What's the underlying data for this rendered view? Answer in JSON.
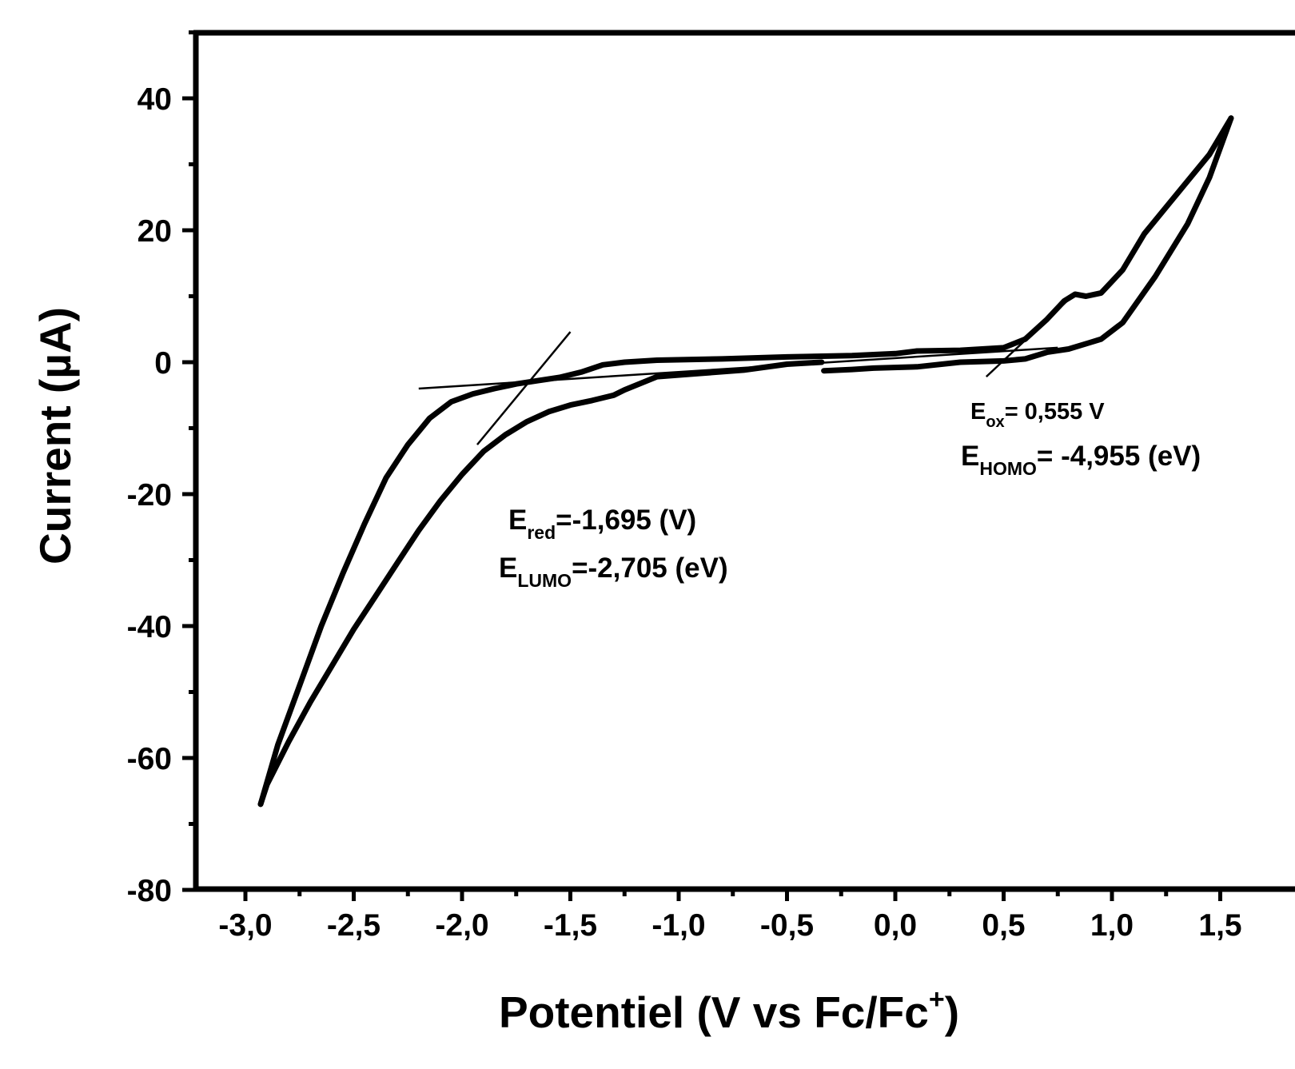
{
  "chart_data": {
    "type": "line",
    "title": "",
    "xlabel": "Potentiel (V vs Fc/Fc",
    "xlabel_sup": "+",
    "xlabel_end": ")",
    "ylabel": "Current (µA)",
    "xlim": [
      -3.2,
      1.65
    ],
    "ylim": [
      -80,
      50
    ],
    "x_ticks": [
      -3.0,
      -2.5,
      -2.0,
      -1.5,
      -1.0,
      -0.5,
      0.0,
      0.5,
      1.0,
      1.5
    ],
    "x_tick_labels": [
      "-3,0",
      "-2,5",
      "-2,0",
      "-1,5",
      "-1,0",
      "-0,5",
      "0,0",
      "0,5",
      "1,0",
      "1,5"
    ],
    "y_ticks": [
      40,
      20,
      0,
      -20,
      -40,
      -60,
      -80
    ],
    "y_tick_labels": [
      "40",
      "20",
      "0",
      "-20",
      "-40",
      "-60",
      "-80"
    ],
    "grid": false,
    "line_color": "#000000",
    "series": [
      {
        "x": [
          -0.34,
          -0.5,
          -0.7,
          -0.9,
          -1.1,
          -1.25,
          -1.3,
          -1.4,
          -1.5,
          -1.6,
          -1.7,
          -1.8,
          -1.9,
          -2.0,
          -2.1,
          -2.2,
          -2.3,
          -2.4,
          -2.5,
          -2.6,
          -2.7,
          -2.8,
          -2.9,
          -2.93
        ],
        "y": [
          0.0,
          -0.3,
          -1.2,
          -1.7,
          -2.2,
          -4.2,
          -5.0,
          -5.8,
          -6.5,
          -7.5,
          -9.0,
          -11.0,
          -13.5,
          -17.0,
          -21.0,
          -25.5,
          -30.5,
          -35.5,
          -40.5,
          -46.0,
          -51.5,
          -57.5,
          -64.0,
          -67.0
        ]
      },
      {
        "x": [
          -2.93,
          -2.85,
          -2.75,
          -2.65,
          -2.55,
          -2.45,
          -2.35,
          -2.25,
          -2.15,
          -2.05,
          -1.95,
          -1.85,
          -1.75,
          -1.65,
          -1.55,
          -1.45,
          -1.35,
          -1.25,
          -1.1,
          -0.8,
          -0.5,
          -0.2,
          0.0,
          0.1,
          0.3,
          0.5,
          0.6
        ],
        "y": [
          -67.0,
          -58.0,
          -49.0,
          -40.0,
          -32.0,
          -24.5,
          -17.5,
          -12.5,
          -8.5,
          -6.0,
          -4.8,
          -4.0,
          -3.3,
          -2.8,
          -2.3,
          -1.5,
          -0.4,
          0.0,
          0.3,
          0.5,
          0.8,
          1.0,
          1.3,
          1.7,
          1.8,
          2.2,
          3.5
        ]
      },
      {
        "x": [
          0.6,
          0.7,
          0.78,
          0.83,
          0.88,
          0.95,
          1.05,
          1.15,
          1.3,
          1.45,
          1.55
        ],
        "y": [
          3.5,
          6.5,
          9.3,
          10.3,
          10.0,
          10.5,
          14.0,
          19.5,
          25.5,
          31.5,
          37.0
        ]
      },
      {
        "x": [
          1.55,
          1.45,
          1.35,
          1.2,
          1.05,
          0.95,
          0.9,
          0.8,
          0.7,
          0.6,
          0.5,
          0.3,
          0.1,
          -0.1,
          -0.2,
          -0.33
        ],
        "y": [
          37.0,
          28.0,
          21.0,
          13.0,
          6.0,
          3.5,
          3.0,
          2.0,
          1.5,
          0.5,
          0.2,
          0.0,
          -0.7,
          -0.9,
          -1.1,
          -1.3
        ]
      }
    ],
    "tangent_lines": [
      {
        "x": [
          -2.2,
          0.75
        ],
        "y": [
          -4.0,
          2.2
        ]
      },
      {
        "x": [
          -1.5,
          -1.93
        ],
        "y": [
          4.6,
          -12.5
        ]
      },
      {
        "x": [
          0.42,
          0.81
        ],
        "y": [
          -2.2,
          9.8
        ]
      }
    ],
    "annotations": [
      {
        "main": "E",
        "sub": "red",
        "rest": "=-1,695 (V)"
      },
      {
        "main": "E",
        "sub": "LUMO",
        "rest": "=-2,705 (eV)"
      },
      {
        "main": "E",
        "sub": "ox",
        "rest": "= 0,555 V"
      },
      {
        "main": "E",
        "sub": "HOMO",
        "rest": "= -4,955 (eV)"
      }
    ]
  }
}
